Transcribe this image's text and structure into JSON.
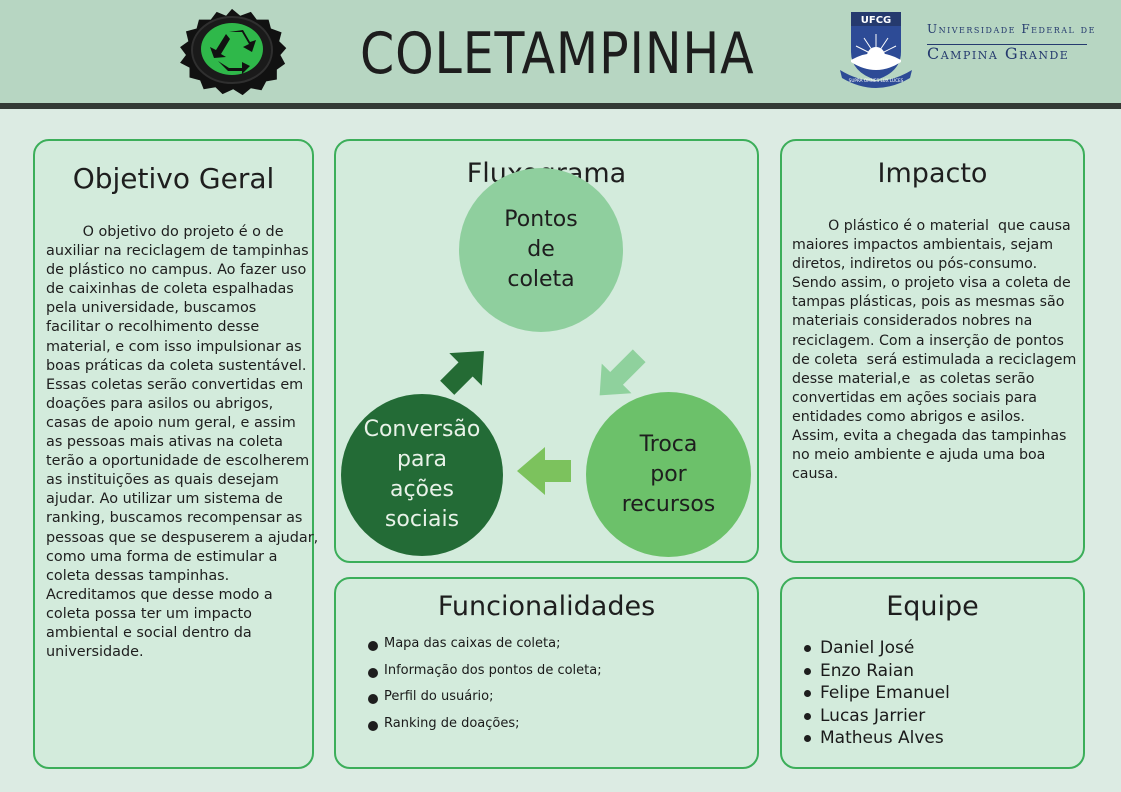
{
  "header": {
    "title": "COLETAMPINHA",
    "university_abbr": "UFCG",
    "university_line1": "Universidade Federal de",
    "university_line2": "Campina Grande",
    "motto": "SUPRA OMNES LUX LUCES"
  },
  "objetivo": {
    "heading": "Objetivo Geral",
    "lines": [
      "        O objetivo do projeto é o de",
      "auxiliar na reciclagem de tampinhas",
      "de plástico no campus. Ao fazer uso",
      "de caixinhas de coleta espalhadas",
      "pela universidade, buscamos",
      "facilitar o recolhimento desse",
      "material, e com isso impulsionar as",
      "boas práticas da coleta sustentável.",
      "Essas coletas serão convertidas em",
      "doações para asilos ou abrigos,",
      "casas de apoio num geral, e assim",
      "as pessoas mais ativas na coleta",
      "terão a oportunidade de escolherem",
      "as instituições as quais desejam",
      "ajudar. Ao utilizar um sistema de",
      "ranking, buscamos recompensar as",
      "pessoas que se despuserem a ajudar,",
      "como uma forma de estimular a",
      "coleta dessas tampinhas.",
      "Acreditamos que desse modo a",
      "coleta possa ter um impacto",
      "ambiental e social dentro da",
      "universidade."
    ]
  },
  "fluxograma": {
    "heading": "Fluxograma",
    "nodes": [
      {
        "lines": [
          "Pontos",
          "de",
          "coleta"
        ]
      },
      {
        "lines": [
          "Troca",
          "por",
          "recursos"
        ]
      },
      {
        "lines": [
          "Conversão",
          "para",
          "ações",
          "sociais"
        ]
      }
    ]
  },
  "impacto": {
    "heading": "Impacto",
    "lines": [
      "        O plástico é o material  que causa",
      "maiores impactos ambientais, sejam",
      "diretos, indiretos ou pós-consumo.",
      "Sendo assim, o projeto visa a coleta de",
      "tampas plásticas, pois as mesmas são",
      "materiais considerados nobres na",
      "reciclagem. Com a inserção de pontos",
      "de coleta  será estimulada a reciclagem",
      "desse material,e  as coletas serão",
      "convertidas em ações sociais para",
      "entidades como abrigos e asilos.",
      "Assim, evita a chegada das tampinhas",
      "no meio ambiente e ajuda uma boa",
      "causa."
    ]
  },
  "funcionalidades": {
    "heading": "Funcionalidades",
    "items": [
      "Mapa das caixas de coleta;",
      "Informação dos pontos de coleta;",
      "Perfil do usuário;",
      "Ranking de doações;"
    ]
  },
  "equipe": {
    "heading": "Equipe",
    "members": [
      "Daniel José",
      "Enzo Raian",
      "Felipe Emanuel",
      "Lucas Jarrier",
      "Matheus Alves"
    ]
  },
  "colors": {
    "panel_border": "#3cae5a",
    "circle_light": "#8fcf9e",
    "circle_mid": "#6cc16a",
    "circle_dark": "#236b36",
    "ufcg_blue": "#253a6e"
  }
}
